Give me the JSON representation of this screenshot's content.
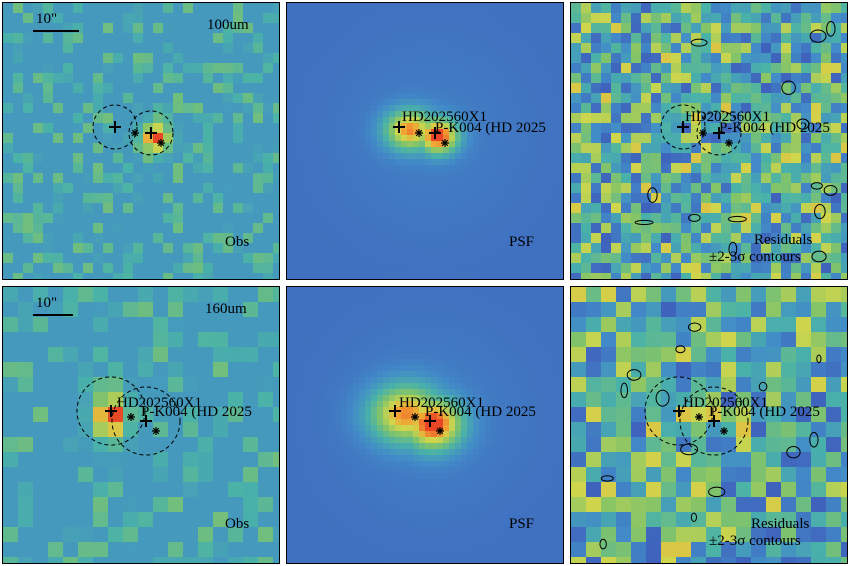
{
  "rows": [
    {
      "band": "100um",
      "scale_text": "10\"",
      "panels": [
        {
          "kind": "obs",
          "label": "Obs",
          "label2": ""
        },
        {
          "kind": "psf",
          "label": "PSF",
          "label2": ""
        },
        {
          "kind": "res",
          "label": "Residuals",
          "label2": "±2-3σ contours"
        }
      ]
    },
    {
      "band": "160um",
      "scale_text": "10\"",
      "panels": [
        {
          "kind": "obs",
          "label": "Obs",
          "label2": ""
        },
        {
          "kind": "psf",
          "label": "PSF",
          "label2": ""
        },
        {
          "kind": "res",
          "label": "Residuals",
          "label2": "±2-3σ contours"
        }
      ]
    }
  ],
  "sources": {
    "first": "HD202560X1",
    "second": "P-K004 (HD 2025"
  },
  "colors": {
    "psf_background": "#4a8fcf",
    "peak": "#e8502a",
    "low": "#4a2f8f"
  }
}
